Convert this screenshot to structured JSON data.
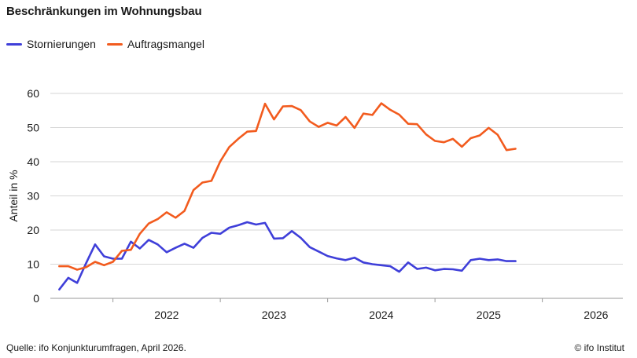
{
  "title": "Beschränkungen im Wohnungsbau",
  "source": "Quelle: ifo Konjunkturumfragen, April 2026.",
  "credit": "© ifo Institut",
  "chart_data": {
    "type": "line",
    "ylabel": "Anteil in %",
    "ylim": [
      0,
      60
    ],
    "yticks": [
      "0",
      "10",
      "20",
      "30",
      "40",
      "50",
      "60"
    ],
    "xlim": [
      "2021-06",
      "2026-10"
    ],
    "xticks": [
      {
        "label": "2022",
        "month": "2022-07"
      },
      {
        "label": "2023",
        "month": "2023-07"
      },
      {
        "label": "2024",
        "month": "2024-07"
      },
      {
        "label": "2025",
        "month": "2025-07"
      },
      {
        "label": "2026",
        "month": "2026-07"
      }
    ],
    "year_boundaries": [
      "2022-01",
      "2023-01",
      "2024-01",
      "2025-01",
      "2026-01"
    ],
    "grid": true,
    "legend": "top-left",
    "start_month": "2021-07",
    "series": [
      {
        "name": "Stornierungen",
        "color": "#3f3fd9",
        "values": [
          2.6,
          6.0,
          4.5,
          10.3,
          15.8,
          12.3,
          11.6,
          11.6,
          16.6,
          14.6,
          17.1,
          15.8,
          13.5,
          14.8,
          16.0,
          14.8,
          17.7,
          19.2,
          18.9,
          20.7,
          21.4,
          22.3,
          21.6,
          22.1,
          17.5,
          17.6,
          19.7,
          17.7,
          15.0,
          13.7,
          12.4,
          11.7,
          11.2,
          11.9,
          10.5,
          10.0,
          9.7,
          9.4,
          7.8,
          10.5,
          8.6,
          9.0,
          8.2,
          8.6,
          8.5,
          8.1,
          11.2,
          11.6,
          11.2,
          11.4,
          10.9,
          10.9
        ]
      },
      {
        "name": "Auftragsmangel",
        "color": "#f25b1e",
        "values": [
          9.4,
          9.4,
          8.4,
          9.1,
          10.7,
          9.7,
          10.7,
          13.9,
          14.2,
          18.9,
          21.9,
          23.2,
          25.2,
          23.6,
          25.6,
          31.7,
          33.9,
          34.4,
          40.1,
          44.3,
          46.7,
          48.8,
          49.0,
          57.0,
          52.4,
          56.2,
          56.3,
          55.1,
          51.8,
          50.2,
          51.4,
          50.6,
          53.1,
          49.9,
          54.1,
          53.7,
          57.1,
          55.2,
          53.8,
          51.1,
          51.0,
          48.0,
          46.1,
          45.7,
          46.7,
          44.4,
          46.9,
          47.7,
          49.9,
          47.9,
          43.4,
          43.8
        ]
      }
    ]
  }
}
